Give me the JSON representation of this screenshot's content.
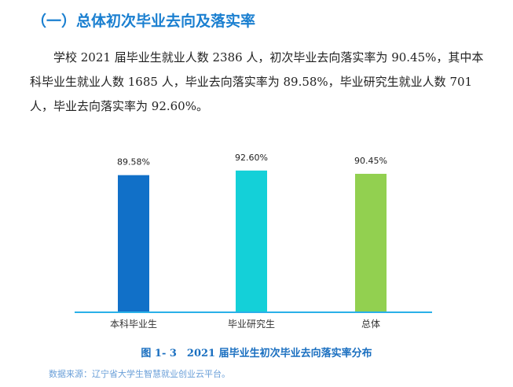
{
  "heading": "（一）总体初次毕业去向及落实率",
  "paragraph": "学校 2021 届毕业生就业人数 2386 人，初次毕业去向落实率为 90.45%，其中本科毕业生就业人数 1685 人，毕业去向落实率为 89.58%，毕业研究生就业人数 701 人，毕业去向落实率为 92.60%。",
  "chart_data": {
    "type": "bar",
    "categories": [
      "本科毕业生",
      "毕业研究生",
      "总体"
    ],
    "values": [
      89.58,
      92.6,
      90.45
    ],
    "data_labels": [
      "89.58%",
      "92.60%",
      "90.45%"
    ],
    "colors": [
      "#1170c8",
      "#14d0d8",
      "#92d050"
    ],
    "axis_color": "#2ab0e8",
    "ylim": [
      0,
      100
    ],
    "grid": false,
    "title": "图 1- 3　2021 届毕业生初次毕业去向落实率分布"
  },
  "source": "数据来源：辽宁省大学生智慧就业创业云平台。"
}
